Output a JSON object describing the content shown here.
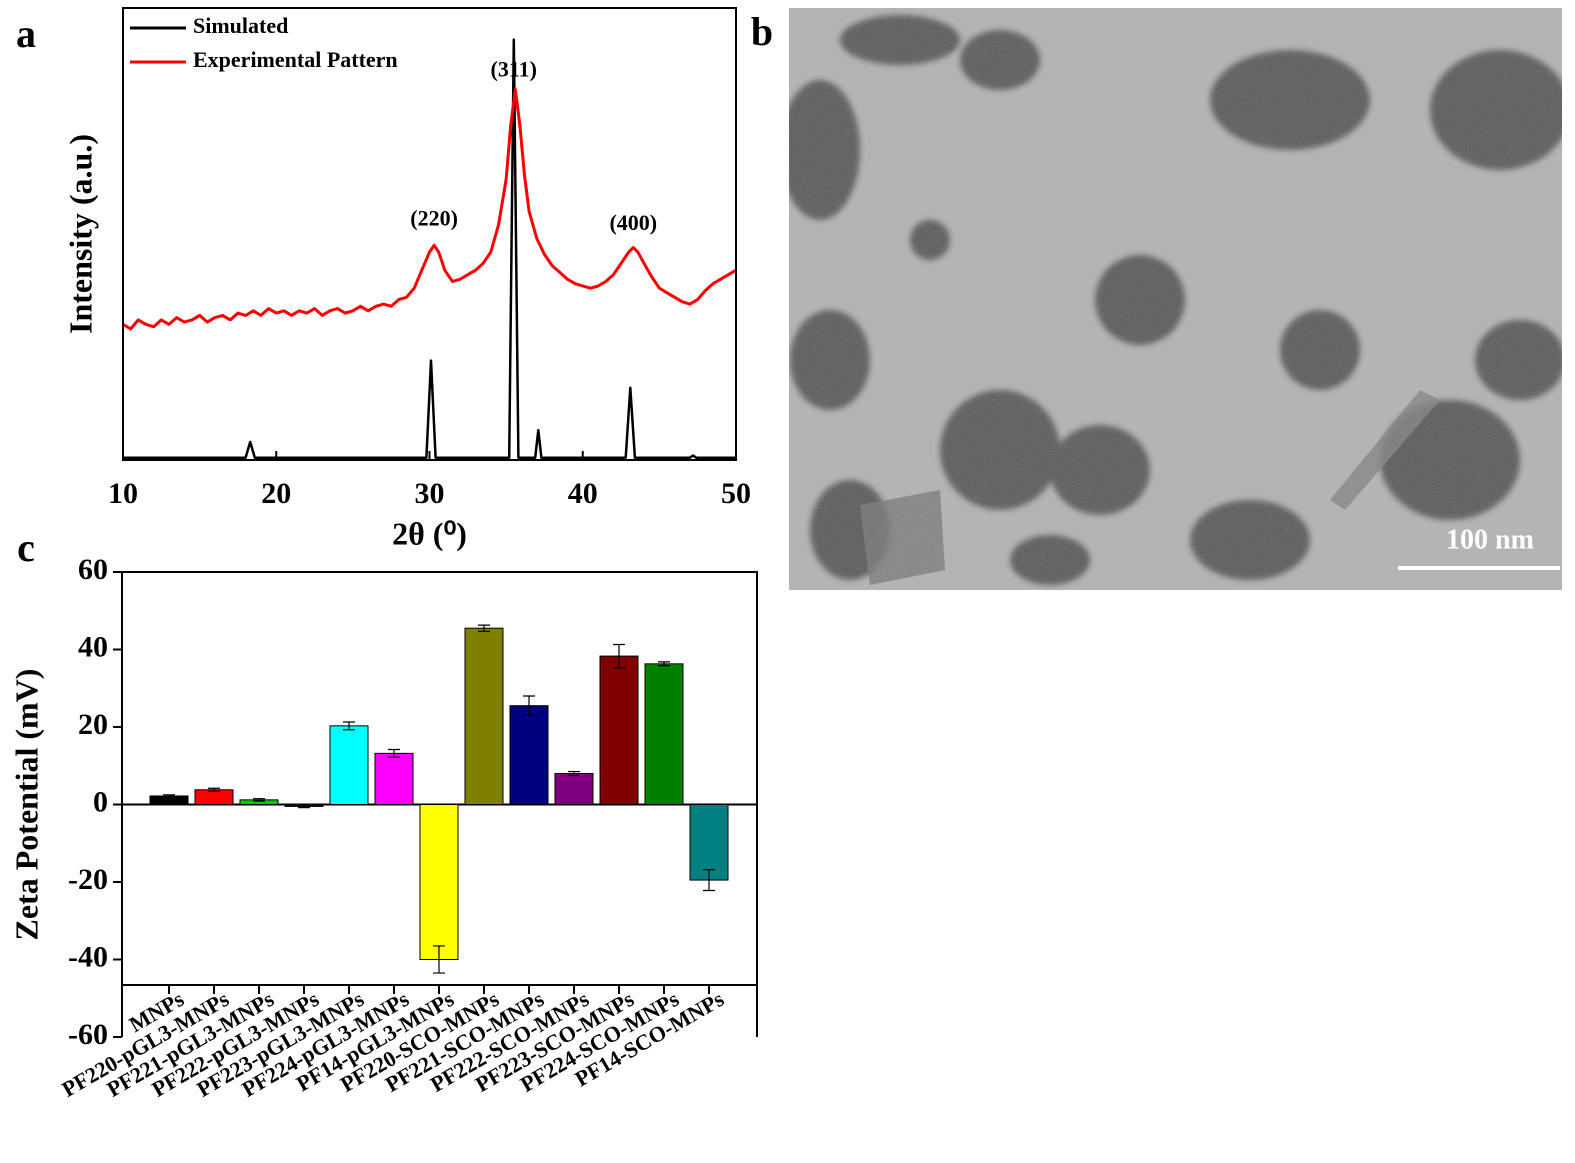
{
  "chart_data": [
    {
      "type": "line",
      "panel_label": "a",
      "xlabel": "2θ (⁰)",
      "ylabel": "Intensity (a.u.)",
      "xlim": [
        10,
        50
      ],
      "xticks": [
        10,
        20,
        30,
        40,
        50
      ],
      "ylim": [
        0,
        100
      ],
      "legend": "upper left",
      "series": [
        {
          "name": "Simulated",
          "color": "#000000",
          "x": [
            10,
            18.0,
            18.3,
            18.6,
            29.8,
            30.1,
            30.4,
            35.2,
            35.5,
            35.8,
            36.9,
            37.1,
            37.3,
            42.8,
            43.1,
            43.4,
            47.0,
            47.2,
            47.4,
            50
          ],
          "values": [
            0.5,
            0.5,
            4,
            0.5,
            0.5,
            22,
            0.5,
            0.5,
            93,
            0.5,
            0.5,
            6.6,
            0.5,
            0.5,
            16,
            0.5,
            0.5,
            1,
            0.5,
            0.5
          ]
        },
        {
          "name": "Experimental Pattern",
          "color": "#ff0000",
          "x": [
            10,
            10.5,
            11,
            11.5,
            12,
            12.5,
            13,
            13.5,
            14,
            14.5,
            15,
            15.5,
            16,
            16.5,
            17,
            17.5,
            18,
            18.5,
            19,
            19.5,
            20,
            20.5,
            21,
            21.5,
            22,
            22.5,
            23,
            23.5,
            24,
            24.5,
            25,
            25.5,
            26,
            26.5,
            27,
            27.5,
            28,
            28.5,
            29,
            29.5,
            30,
            30.3,
            30.6,
            31,
            31.5,
            32,
            32.5,
            33,
            33.5,
            34,
            34.5,
            35,
            35.3,
            35.6,
            35.9,
            36.2,
            36.5,
            37,
            37.5,
            38,
            38.5,
            39,
            39.5,
            40,
            40.5,
            41,
            41.5,
            42,
            42.5,
            43,
            43.3,
            43.6,
            44,
            44.5,
            45,
            45.5,
            46,
            46.5,
            47,
            47.5,
            48,
            48.5,
            49,
            49.5,
            50
          ],
          "values": [
            30,
            29,
            31,
            30,
            29.5,
            31,
            30,
            31.5,
            30.5,
            31,
            32,
            30.5,
            31.5,
            32,
            31,
            32.5,
            32,
            33,
            32,
            33.5,
            32.5,
            33,
            32,
            33,
            32.5,
            33.5,
            32,
            33,
            33.5,
            32.5,
            33,
            34,
            33,
            34,
            34.5,
            34,
            35.5,
            36,
            38,
            42,
            46,
            47.5,
            46,
            42,
            39.5,
            40,
            41,
            42,
            43.5,
            46,
            52,
            62,
            74,
            82,
            74,
            63,
            55,
            49,
            45.5,
            43,
            41.5,
            40,
            39,
            38.5,
            38,
            38.5,
            39.5,
            41,
            43.5,
            46,
            47,
            46,
            43.5,
            40.5,
            38,
            37,
            36,
            35,
            34.5,
            35.5,
            37.5,
            39,
            40,
            41,
            42
          ]
        }
      ],
      "annotations": [
        {
          "text": "(220)",
          "x": 30.3,
          "y": 53
        },
        {
          "text": "(311)",
          "x": 35.5,
          "y": 86
        },
        {
          "text": "(400)",
          "x": 43.3,
          "y": 52
        }
      ]
    },
    {
      "type": "bar",
      "panel_label": "c",
      "ylabel": "Zeta Potential (mV)",
      "categories": [
        "MNPs",
        "PF220-pGL3-MNPs",
        "PF221-pGL3-MNPs",
        "PF222-pGL3-MNPs",
        "PF223-pGL3-MNPs",
        "PF224-pGL3-MNPs",
        "PF14-pGL3-MNPs",
        "PF220-SCO-MNPs",
        "PF221-SCO-MNPs",
        "PF222-SCO-MNPs",
        "PF223-SCO-MNPs",
        "PF224-SCO-MNPs",
        "PF14-SCO-MNPs"
      ],
      "values": [
        2.2,
        3.8,
        1.2,
        -0.5,
        20.3,
        13.2,
        -40,
        45.5,
        25.5,
        8,
        38.3,
        36.3,
        -19.5
      ],
      "errors": [
        0.3,
        0.4,
        0.3,
        0.3,
        1,
        1,
        3.5,
        0.8,
        2.5,
        0.5,
        3,
        0.5,
        2.7
      ],
      "colors": [
        "#000000",
        "#ff0000",
        "#00cc00",
        "#000080",
        "#00ffff",
        "#ff00ff",
        "#ffff00",
        "#808000",
        "#000080",
        "#800080",
        "#800000",
        "#008000",
        "#008080"
      ],
      "ylim": [
        -60,
        60
      ],
      "yticks": [
        -60,
        -40,
        -20,
        0,
        20,
        40,
        60
      ]
    }
  ],
  "image": {
    "panel_label": "b",
    "scale_label": "100 nm"
  }
}
